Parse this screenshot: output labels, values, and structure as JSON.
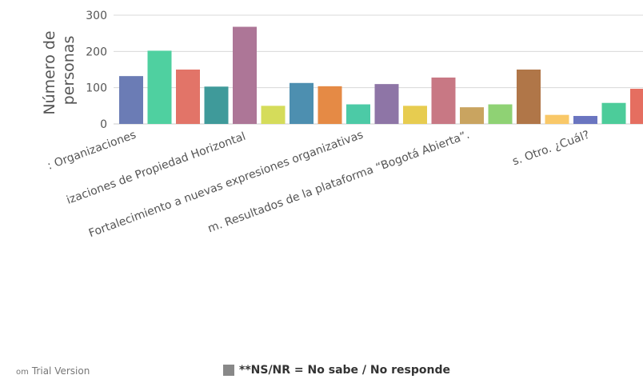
{
  "chart_data": {
    "type": "bar",
    "ylabel_lines": [
      "Número de",
      "personas"
    ],
    "ylim": [
      0,
      300
    ],
    "yticks": [
      0,
      100,
      200,
      300
    ],
    "grid": true,
    "categories": [
      ": Organizaciones",
      "izaciones de Propiedad Horizontal",
      "Fortalecimiento a nuevas expresiones organizativas",
      "m. Resultados de la plataforma “Bogotá Abierta”.",
      "s. Otro. ¿Cuál?"
    ],
    "bars": [
      {
        "value": 132,
        "color": "#6b7cb5"
      },
      {
        "value": 202,
        "color": "#4fd0a0"
      },
      {
        "value": 150,
        "color": "#e27468"
      },
      {
        "value": 103,
        "color": "#3f9a9a"
      },
      {
        "value": 268,
        "color": "#ad7697"
      },
      {
        "value": 50,
        "color": "#d5dc5a"
      },
      {
        "value": 113,
        "color": "#4d8fb0"
      },
      {
        "value": 104,
        "color": "#e58a45"
      },
      {
        "value": 54,
        "color": "#4ccaa6"
      },
      {
        "value": 110,
        "color": "#8e75a6"
      },
      {
        "value": 50,
        "color": "#e7cc50"
      },
      {
        "value": 128,
        "color": "#c87884"
      },
      {
        "value": 46,
        "color": "#c9a460"
      },
      {
        "value": 54,
        "color": "#8fd274"
      },
      {
        "value": 150,
        "color": "#b07648"
      },
      {
        "value": 25,
        "color": "#f9c868"
      },
      {
        "value": 22,
        "color": "#6a75c0"
      },
      {
        "value": 58,
        "color": "#4ccc9a"
      },
      {
        "value": 97,
        "color": "#e56e60"
      }
    ]
  },
  "footer": {
    "credit_prefix": "om",
    "credit_text": "Trial Version",
    "legend_text": "**NS/NR = No sabe / No responde",
    "legend_color": "#888888"
  }
}
